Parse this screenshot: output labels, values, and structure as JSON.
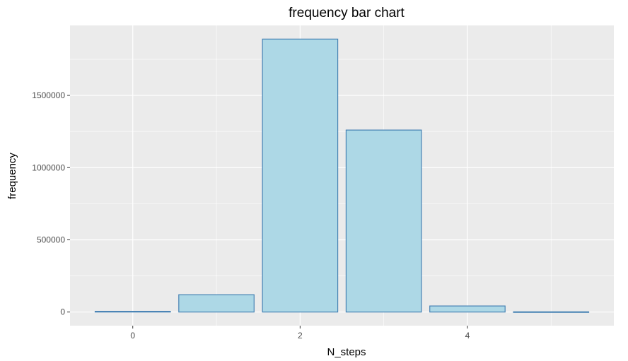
{
  "chart_data": {
    "type": "bar",
    "title": "frequency bar chart",
    "xlabel": "N_steps",
    "ylabel": "frequency",
    "categories": [
      0,
      1,
      2,
      3,
      4,
      5
    ],
    "values": [
      5000,
      120000,
      1890000,
      1260000,
      42000,
      1500
    ],
    "x_ticks": [
      0,
      2,
      4
    ],
    "y_ticks": [
      0,
      500000,
      1000000,
      1500000
    ],
    "y_tick_labels": [
      "0",
      "500000",
      "1000000",
      "1500000"
    ],
    "x_tick_labels": [
      "0",
      "2",
      "4"
    ],
    "ylim": [
      -94500,
      1984500
    ],
    "xlim": [
      -0.75,
      5.75
    ],
    "grid": true,
    "legend": "none",
    "colors": {
      "panel_background": "#ebebeb",
      "grid_line": "#ffffff",
      "bar_fill": "#add8e6",
      "bar_stroke": "#4682b4",
      "tick_mark": "#333333"
    }
  }
}
